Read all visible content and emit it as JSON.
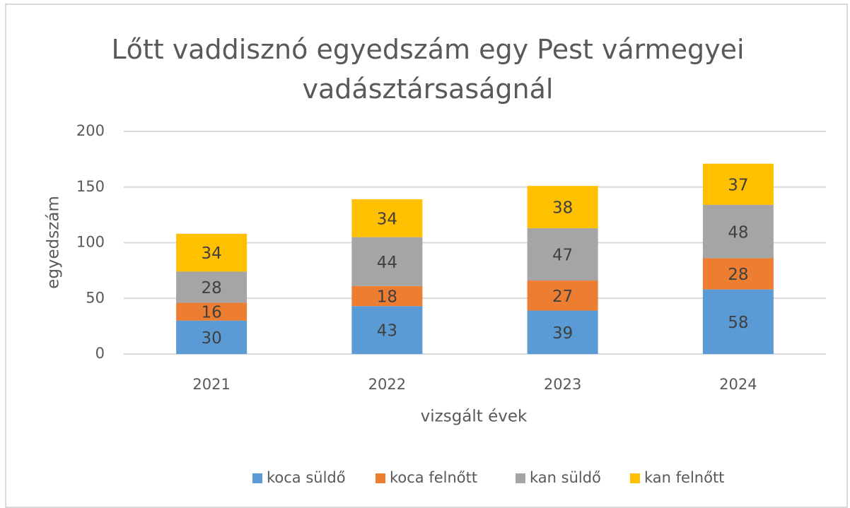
{
  "chart_data": {
    "type": "stacked_bar",
    "title": "Lőtt vaddisznó egyedszám egy Pest vármegyei vadásztársaságnál",
    "x_label": "vizsgált évek",
    "y_label": "egyedszám",
    "categories": [
      "2021",
      "2022",
      "2023",
      "2024"
    ],
    "series": [
      {
        "name": "koca süldő",
        "color": "#5b9bd5",
        "values": [
          30,
          43,
          39,
          58
        ]
      },
      {
        "name": "koca felnőtt",
        "color": "#ed7d31",
        "values": [
          16,
          18,
          27,
          28
        ]
      },
      {
        "name": "kan süldő",
        "color": "#a5a5a5",
        "values": [
          28,
          44,
          47,
          48
        ]
      },
      {
        "name": "kan felnőtt",
        "color": "#ffc000",
        "values": [
          34,
          34,
          38,
          37
        ]
      }
    ],
    "ylim": [
      0,
      200
    ],
    "yticks": [
      0,
      50,
      100,
      150,
      200
    ],
    "grid": true,
    "legend": "bottom"
  }
}
